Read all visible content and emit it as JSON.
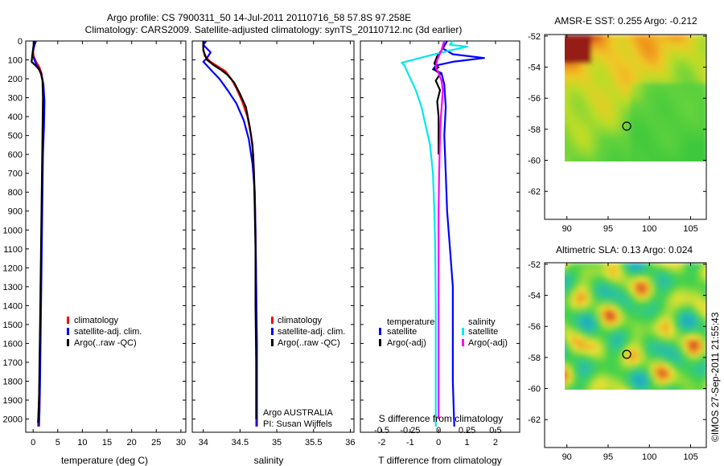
{
  "header": {
    "line1": "Argo profile: CS 7900311_50 14-Jul-2011 20110716_58 57.8S 97.258E",
    "line2": "Climatology: CARS2009. Satellite-adjusted climatology: synTS_20110712.nc (3d earlier)"
  },
  "side_stamp": "©IMOS 27-Sep-2011 21:55:43",
  "colors": {
    "climatology": "#ff0000",
    "satellite": "#0000ff",
    "argo": "#000000",
    "satellite_s": "#00e8ee",
    "argo_s": "#ff00ff"
  },
  "chart_data": [
    {
      "type": "line",
      "xlabel": "temperature (deg C)",
      "ylabel": "",
      "xlim": [
        -1.5,
        31
      ],
      "ylim": [
        2070,
        0
      ],
      "xticks": [
        0,
        5,
        10,
        15,
        20,
        25,
        30
      ],
      "yticks": [
        0,
        100,
        200,
        300,
        400,
        500,
        600,
        700,
        800,
        900,
        1000,
        1100,
        1200,
        1300,
        1400,
        1500,
        1600,
        1700,
        1800,
        1900,
        2000
      ],
      "legend": {
        "placement": "center-left",
        "entries": [
          "climatology",
          "satellite-adj. clim.",
          "Argo(..raw -QC)"
        ]
      },
      "series": [
        {
          "name": "climatology",
          "color": "#ff0000",
          "points": [
            [
              0.3,
              0
            ],
            [
              0.1,
              30
            ],
            [
              0.0,
              60
            ],
            [
              0.1,
              80
            ],
            [
              0.6,
              110
            ],
            [
              1.3,
              140
            ],
            [
              1.7,
              170
            ],
            [
              2.0,
              220
            ],
            [
              2.1,
              300
            ],
            [
              2.0,
              400
            ],
            [
              1.9,
              600
            ],
            [
              1.8,
              800
            ],
            [
              1.7,
              1000
            ],
            [
              1.6,
              1200
            ],
            [
              1.5,
              1400
            ],
            [
              1.4,
              1600
            ],
            [
              1.3,
              1800
            ],
            [
              1.1,
              1960
            ],
            [
              1.0,
              2040
            ]
          ]
        },
        {
          "name": "satellite-adj. clim.",
          "color": "#0000ff",
          "points": [
            [
              0.6,
              0
            ],
            [
              0.3,
              20
            ],
            [
              0.0,
              50
            ],
            [
              -0.1,
              75
            ],
            [
              0.4,
              110
            ],
            [
              1.0,
              140
            ],
            [
              1.6,
              170
            ],
            [
              2.1,
              230
            ],
            [
              2.3,
              320
            ],
            [
              2.2,
              450
            ],
            [
              2.0,
              600
            ],
            [
              1.9,
              800
            ],
            [
              1.8,
              1000
            ],
            [
              1.7,
              1200
            ],
            [
              1.6,
              1400
            ],
            [
              1.5,
              1600
            ],
            [
              1.4,
              1800
            ],
            [
              1.3,
              1960
            ],
            [
              1.2,
              2040
            ]
          ]
        },
        {
          "name": "Argo(..raw -QC)",
          "color": "#000000",
          "points": [
            [
              0.2,
              0
            ],
            [
              0.0,
              40
            ],
            [
              -0.2,
              80
            ],
            [
              -0.3,
              110
            ],
            [
              0.5,
              130
            ],
            [
              1.2,
              150
            ],
            [
              1.6,
              175
            ],
            [
              1.9,
              210
            ],
            [
              2.0,
              300
            ],
            [
              1.9,
              500
            ],
            [
              1.8,
              700
            ],
            [
              1.7,
              900
            ],
            [
              1.6,
              1100
            ],
            [
              1.5,
              1300
            ],
            [
              1.4,
              1500
            ],
            [
              1.3,
              1700
            ],
            [
              1.2,
              1900
            ],
            [
              1.0,
              2020
            ]
          ]
        }
      ]
    },
    {
      "type": "line",
      "xlabel": "salinity",
      "ylabel": "",
      "xlim": [
        33.85,
        36.05
      ],
      "ylim": [
        2070,
        0
      ],
      "xticks": [
        34,
        34.5,
        35,
        35.5,
        36
      ],
      "xticklabels": [
        "34",
        "34.5",
        "35",
        "35.5",
        "36"
      ],
      "legend": {
        "placement": "center-right",
        "entries": [
          "climatology",
          "satellite-adj. clim.",
          "Argo(..raw -QC)"
        ]
      },
      "annotation": [
        "Argo AUSTRALIA",
        "PI: Susan Wijffels"
      ],
      "series": [
        {
          "name": "climatology",
          "color": "#ff0000",
          "points": [
            [
              34.0,
              0
            ],
            [
              34.0,
              40
            ],
            [
              34.02,
              80
            ],
            [
              34.1,
              110
            ],
            [
              34.22,
              140
            ],
            [
              34.3,
              160
            ],
            [
              34.38,
              200
            ],
            [
              34.45,
              250
            ],
            [
              34.53,
              320
            ],
            [
              34.6,
              400
            ],
            [
              34.65,
              500
            ],
            [
              34.68,
              600
            ],
            [
              34.7,
              800
            ],
            [
              34.71,
              1000
            ],
            [
              34.72,
              1300
            ],
            [
              34.72,
              1600
            ],
            [
              34.72,
              2040
            ]
          ]
        },
        {
          "name": "satellite-adj. clim.",
          "color": "#0000ff",
          "points": [
            [
              34.04,
              0
            ],
            [
              34.0,
              20
            ],
            [
              34.1,
              60
            ],
            [
              34.05,
              90
            ],
            [
              34.0,
              110
            ],
            [
              34.05,
              130
            ],
            [
              34.12,
              160
            ],
            [
              34.22,
              200
            ],
            [
              34.33,
              260
            ],
            [
              34.45,
              330
            ],
            [
              34.55,
              420
            ],
            [
              34.62,
              520
            ],
            [
              34.67,
              650
            ],
            [
              34.7,
              800
            ],
            [
              34.71,
              1000
            ],
            [
              34.72,
              1300
            ],
            [
              34.73,
              1600
            ],
            [
              34.73,
              2040
            ]
          ]
        },
        {
          "name": "Argo(..raw -QC)",
          "color": "#000000",
          "points": [
            [
              34.0,
              0
            ],
            [
              34.0,
              50
            ],
            [
              34.05,
              100
            ],
            [
              34.15,
              130
            ],
            [
              34.25,
              155
            ],
            [
              34.33,
              180
            ],
            [
              34.42,
              220
            ],
            [
              34.5,
              280
            ],
            [
              34.58,
              350
            ],
            [
              34.63,
              450
            ],
            [
              34.67,
              550
            ],
            [
              34.69,
              700
            ],
            [
              34.7,
              900
            ],
            [
              34.71,
              1100
            ],
            [
              34.71,
              1400
            ],
            [
              34.72,
              1700
            ],
            [
              34.72,
              2000
            ]
          ]
        }
      ]
    },
    {
      "type": "line",
      "xlabel": "T difference from climatology",
      "top_axis_label": "S difference from climatology",
      "ylabel": "",
      "xlim": [
        -2.75,
        2.85
      ],
      "ylim": [
        2070,
        0
      ],
      "xticks": [
        -2,
        -1,
        0,
        1,
        2
      ],
      "top_xticks": [
        -0.5,
        -0.25,
        0,
        0.25,
        0.5
      ],
      "legend": {
        "placement": "center",
        "groups": [
          {
            "title": "temperature",
            "entries": [
              "satellite",
              "Argo(-adj)"
            ]
          },
          {
            "title": "salinity",
            "entries": [
              "satellite",
              "Argo(-adj)"
            ]
          }
        ]
      },
      "series": [
        {
          "name": "temperature satellite",
          "color": "#0000ff",
          "points": [
            [
              0.3,
              0
            ],
            [
              0.15,
              40
            ],
            [
              0.5,
              70
            ],
            [
              1.6,
              90
            ],
            [
              0.5,
              110
            ],
            [
              -0.1,
              130
            ],
            [
              -0.2,
              150
            ],
            [
              0.1,
              170
            ],
            [
              0.2,
              230
            ],
            [
              0.25,
              350
            ],
            [
              0.2,
              500
            ],
            [
              0.25,
              700
            ],
            [
              0.3,
              900
            ],
            [
              0.4,
              1100
            ],
            [
              0.5,
              1300
            ],
            [
              0.5,
              1600
            ],
            [
              0.5,
              1800
            ],
            [
              0.55,
              2040
            ]
          ]
        },
        {
          "name": "temperature Argo(-adj)",
          "color": "#000000",
          "points": [
            [
              0.2,
              0
            ],
            [
              0.1,
              50
            ],
            [
              -0.05,
              80
            ],
            [
              -0.1,
              100
            ],
            [
              -0.15,
              120
            ],
            [
              0.0,
              140
            ],
            [
              -0.15,
              150
            ],
            [
              0.05,
              175
            ],
            [
              -0.1,
              210
            ],
            [
              0.05,
              260
            ],
            [
              -0.05,
              320
            ],
            [
              0.0,
              400
            ],
            [
              0.0,
              600
            ]
          ]
        },
        {
          "name": "salinity satellite",
          "color": "#00e8ee",
          "points": [
            [
              0.5,
              0
            ],
            [
              0.4,
              20
            ],
            [
              1.0,
              30
            ],
            [
              0.4,
              50
            ],
            [
              -0.4,
              80
            ],
            [
              -1.3,
              115
            ],
            [
              -1.2,
              130
            ],
            [
              -1.05,
              180
            ],
            [
              -0.8,
              260
            ],
            [
              -0.6,
              350
            ],
            [
              -0.45,
              450
            ],
            [
              -0.3,
              550
            ],
            [
              -0.2,
              700
            ],
            [
              -0.15,
              900
            ],
            [
              -0.12,
              1100
            ],
            [
              -0.1,
              1400
            ],
            [
              -0.1,
              1700
            ],
            [
              -0.1,
              2040
            ]
          ]
        },
        {
          "name": "salinity Argo(-adj)",
          "color": "#ff00ff",
          "points": [
            [
              0.2,
              0
            ],
            [
              0.1,
              50
            ],
            [
              -0.05,
              100
            ],
            [
              -0.1,
              140
            ],
            [
              0.0,
              170
            ],
            [
              0.1,
              210
            ],
            [
              0.15,
              260
            ],
            [
              0.12,
              320
            ],
            [
              0.08,
              400
            ],
            [
              0.05,
              500
            ],
            [
              0.02,
              700
            ],
            [
              0.0,
              900
            ],
            [
              0.0,
              1200
            ],
            [
              0.0,
              1500
            ],
            [
              0.0,
              2000
            ]
          ]
        }
      ]
    },
    {
      "type": "heatmap",
      "title": "AMSR-E SST: 0.255 Argo: -0.212",
      "xlim": [
        87.3,
        106.9
      ],
      "ylim": [
        -63.8,
        -51.9
      ],
      "xticks": [
        90,
        95,
        100,
        105
      ],
      "yticks": [
        -52,
        -54,
        -56,
        -58,
        -60,
        -62
      ],
      "data_extent": {
        "lon": [
          88.3,
          106.9
        ],
        "lat": [
          -60.2,
          -51.9
        ]
      },
      "marker": {
        "lon": 97.26,
        "lat": -57.8
      }
    },
    {
      "type": "heatmap",
      "title": "Altimetric SLA: 0.13 Argo: 0.024",
      "xlim": [
        87.3,
        106.9
      ],
      "ylim": [
        -63.8,
        -51.9
      ],
      "xticks": [
        90,
        95,
        100,
        105
      ],
      "yticks": [
        -52,
        -54,
        -56,
        -58,
        -60,
        -62
      ],
      "data_extent": {
        "lon": [
          88.3,
          106.9
        ],
        "lat": [
          -60.2,
          -51.9
        ]
      },
      "marker": {
        "lon": 97.26,
        "lat": -57.8
      }
    }
  ]
}
